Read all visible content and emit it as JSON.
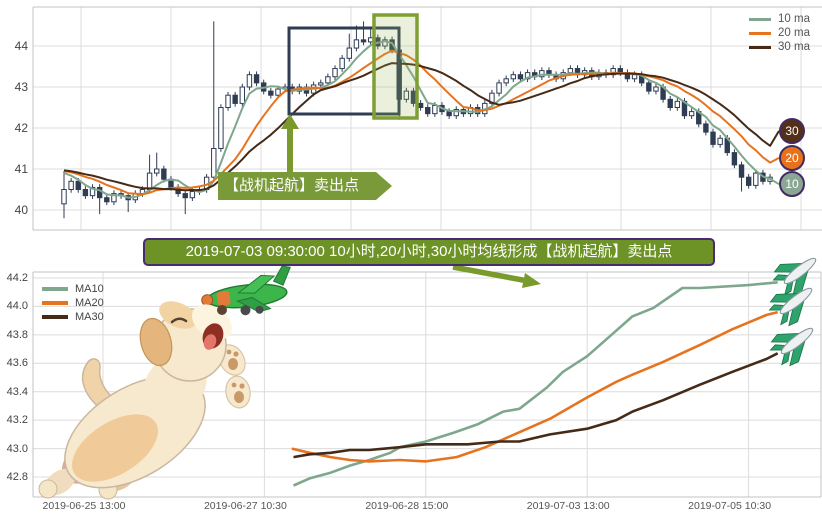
{
  "chart_data": [
    {
      "type": "candlestick",
      "title": "",
      "xlabel": "",
      "ylabel": "",
      "y_ticks": [
        "44",
        "43",
        "42",
        "41",
        "40"
      ],
      "ylim": [
        39.5,
        44.95
      ],
      "grid": true,
      "legend_position": "top-right",
      "candle_color": "#2f3d54",
      "closes": [
        40.5,
        40.7,
        40.5,
        40.35,
        40.55,
        40.3,
        40.2,
        40.4,
        40.35,
        40.25,
        40.4,
        40.5,
        40.9,
        41.0,
        40.75,
        40.55,
        40.4,
        40.3,
        40.45,
        40.5,
        40.8,
        41.5,
        42.5,
        42.8,
        42.6,
        43.0,
        43.3,
        43.1,
        42.9,
        42.8,
        42.95,
        43.0,
        42.9,
        43.0,
        42.85,
        43.05,
        43.1,
        43.25,
        43.45,
        43.7,
        43.95,
        44.15,
        44.1,
        44.2,
        44.0,
        44.15,
        43.9,
        42.7,
        42.9,
        42.6,
        42.5,
        42.35,
        42.55,
        42.4,
        42.3,
        42.45,
        42.35,
        42.5,
        42.35,
        42.6,
        42.85,
        43.1,
        43.2,
        43.3,
        43.2,
        43.35,
        43.25,
        43.4,
        43.3,
        43.2,
        43.35,
        43.45,
        43.3,
        43.4,
        43.25,
        43.35,
        43.3,
        43.45,
        43.35,
        43.2,
        43.3,
        43.1,
        42.9,
        43.0,
        42.7,
        42.5,
        42.65,
        42.3,
        42.4,
        42.1,
        41.9,
        41.6,
        41.75,
        41.4,
        41.1,
        40.8,
        40.6,
        40.9,
        40.7,
        40.8
      ],
      "overrides": {
        "0": {
          "o": 40.15,
          "h": 40.95,
          "l": 39.8
        },
        "5": {
          "l": 39.9
        },
        "9": {
          "l": 39.95
        },
        "12": {
          "h": 41.35
        },
        "13": {
          "h": 41.4
        },
        "17": {
          "l": 39.9
        },
        "21": {
          "h": 44.6,
          "l": 40.7
        },
        "40": {
          "h": 44.3
        },
        "41": {
          "h": 44.5
        },
        "42": {
          "h": 44.6
        },
        "43": {
          "h": 44.4
        },
        "47": {
          "l": 42.2
        },
        "95": {
          "l": 40.45
        }
      },
      "ma_lines": [
        {
          "label": "10 ma",
          "hours": 10,
          "bars": 5,
          "color": "#7ea78d"
        },
        {
          "label": "20 ma",
          "hours": 20,
          "bars": 10,
          "color": "#e6731e"
        },
        {
          "label": "30 ma",
          "hours": 30,
          "bars": 15,
          "color": "#452a18"
        }
      ],
      "badges": [
        {
          "label": "30",
          "color": "#533018",
          "value": 41.93
        },
        {
          "label": "20",
          "color": "#e8721c",
          "value": 41.27
        },
        {
          "label": "10",
          "color": "#8aa794",
          "value": 40.63
        }
      ]
    },
    {
      "type": "line",
      "title": "",
      "xlabel": "",
      "ylabel": "",
      "x_unit": "tick-index",
      "x_ticks": [
        "2019-06-25 13:00",
        "2019-06-27 10:30",
        "2019-06-28 15:00",
        "2019-07-03 13:00",
        "2019-07-05 10:30"
      ],
      "y_ticks": [
        "44.2",
        "44.0",
        "43.8",
        "43.6",
        "43.4",
        "43.2",
        "43.0",
        "42.8"
      ],
      "ylim": [
        42.66,
        44.24
      ],
      "grid": true,
      "legend_position": "top-left",
      "series": [
        {
          "name": "MA10",
          "color": "#7ea78d",
          "points": [
            [
              1.18,
              42.74
            ],
            [
              1.28,
              42.79
            ],
            [
              1.41,
              42.83
            ],
            [
              1.53,
              42.88
            ],
            [
              1.65,
              42.92
            ],
            [
              1.78,
              42.97
            ],
            [
              1.84,
              43.01
            ],
            [
              2.0,
              43.05
            ],
            [
              2.17,
              43.11
            ],
            [
              2.32,
              43.17
            ],
            [
              2.48,
              43.26
            ],
            [
              2.58,
              43.28
            ],
            [
              2.75,
              43.43
            ],
            [
              2.85,
              43.54
            ],
            [
              3.0,
              43.65
            ],
            [
              3.14,
              43.79
            ],
            [
              3.28,
              43.93
            ],
            [
              3.41,
              43.99
            ],
            [
              3.59,
              44.13
            ],
            [
              3.7,
              44.13
            ],
            [
              4.0,
              44.15
            ],
            [
              4.18,
              44.17
            ]
          ]
        },
        {
          "name": "MA20",
          "color": "#e6731e",
          "points": [
            [
              1.17,
              43.0
            ],
            [
              1.28,
              42.97
            ],
            [
              1.41,
              42.94
            ],
            [
              1.53,
              42.92
            ],
            [
              1.65,
              42.91
            ],
            [
              1.84,
              42.92
            ],
            [
              2.0,
              42.91
            ],
            [
              2.19,
              42.94
            ],
            [
              2.37,
              43.01
            ],
            [
              2.57,
              43.11
            ],
            [
              2.77,
              43.21
            ],
            [
              3.0,
              43.36
            ],
            [
              3.18,
              43.47
            ],
            [
              3.28,
              43.52
            ],
            [
              3.47,
              43.61
            ],
            [
              3.7,
              43.73
            ],
            [
              3.9,
              43.84
            ],
            [
              4.11,
              43.94
            ],
            [
              4.18,
              43.96
            ]
          ]
        },
        {
          "name": "MA30",
          "color": "#452a18",
          "points": [
            [
              1.18,
              42.94
            ],
            [
              1.28,
              42.96
            ],
            [
              1.41,
              42.97
            ],
            [
              1.53,
              42.99
            ],
            [
              1.65,
              42.99
            ],
            [
              1.84,
              43.01
            ],
            [
              2.0,
              43.03
            ],
            [
              2.26,
              43.03
            ],
            [
              2.46,
              43.05
            ],
            [
              2.58,
              43.05
            ],
            [
              2.77,
              43.1
            ],
            [
              3.0,
              43.14
            ],
            [
              3.18,
              43.2
            ],
            [
              3.28,
              43.26
            ],
            [
              3.47,
              43.34
            ],
            [
              3.7,
              43.45
            ],
            [
              3.9,
              43.54
            ],
            [
              4.11,
              43.63
            ],
            [
              4.18,
              43.67
            ]
          ]
        }
      ]
    }
  ],
  "annotations": {
    "sell_label": "【战机起航】卖出点",
    "title": "2019-07-03 09:30:00 10小时,20小时,30小时均线形成【战机起航】卖出点",
    "accent_green": "#6d9226",
    "label_green": "#7a9a3a",
    "arrow_green": "#7a9a2e",
    "box_navy": "#2e3d54",
    "box_green_border": "#7f9f33",
    "border_purple": "#4a2b72"
  }
}
